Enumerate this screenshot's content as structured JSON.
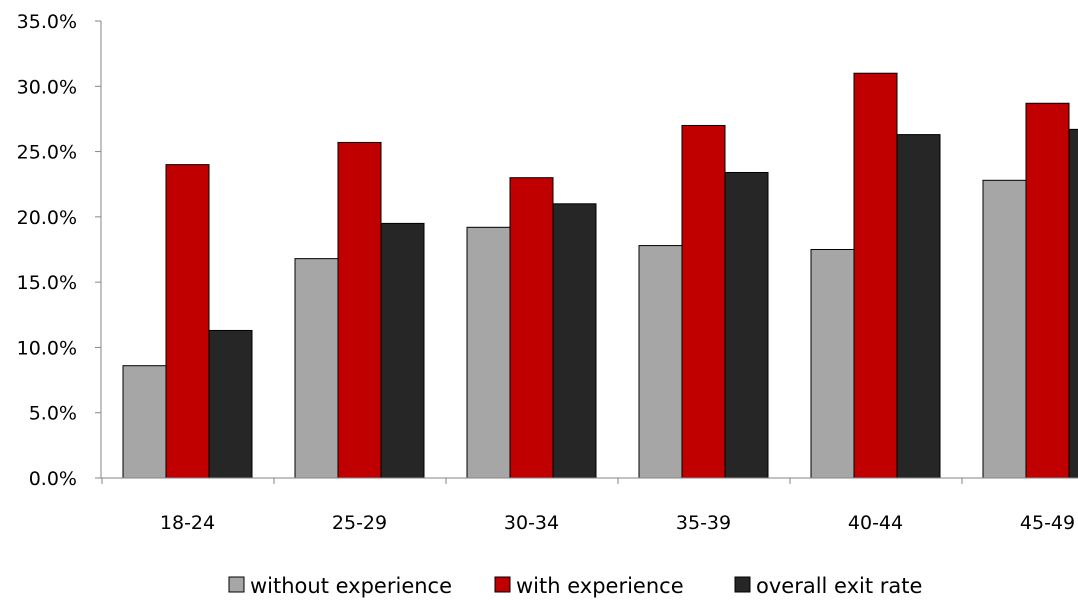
{
  "chart_data": {
    "type": "bar",
    "categories": [
      "18-24",
      "25-29",
      "30-34",
      "35-39",
      "40-44",
      "45-49"
    ],
    "series": [
      {
        "name": "without experience",
        "color": "#a6a6a6",
        "values": [
          8.6,
          16.8,
          19.2,
          17.8,
          17.5,
          22.8
        ]
      },
      {
        "name": "with experience",
        "color": "#c00000",
        "values": [
          24.0,
          25.7,
          23.0,
          27.0,
          31.0,
          28.7
        ]
      },
      {
        "name": "overall exit rate",
        "color": "#262626",
        "values": [
          11.3,
          19.5,
          21.0,
          23.4,
          26.3,
          26.7
        ]
      }
    ],
    "ylim": [
      0,
      35
    ],
    "yticks": [
      "0.0%",
      "5.0%",
      "10.0%",
      "15.0%",
      "20.0%",
      "25.0%",
      "30.0%",
      "35.0%"
    ],
    "ytick_values": [
      0,
      5,
      10,
      15,
      20,
      25,
      30,
      35
    ],
    "grid": false,
    "legend_position": "bottom",
    "title": "",
    "xlabel": "",
    "ylabel": ""
  }
}
